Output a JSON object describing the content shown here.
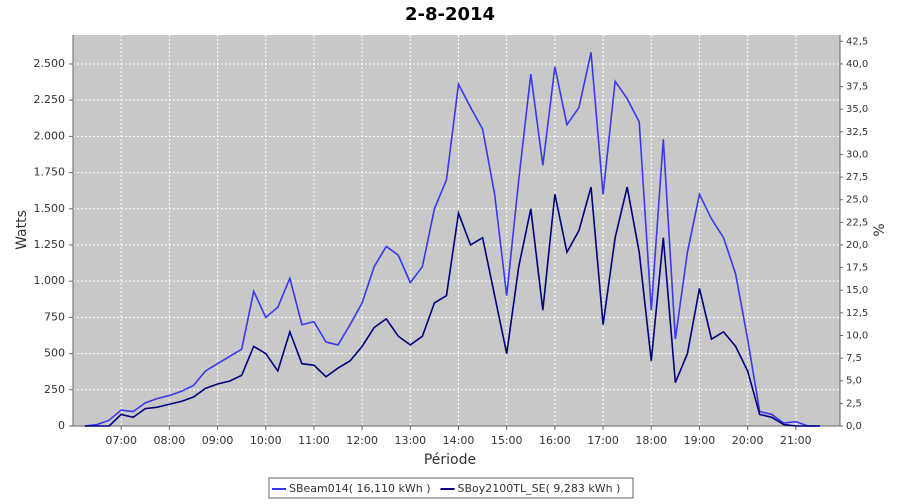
{
  "chart_data": {
    "type": "line",
    "title": "2-8-2014",
    "x_label": "Période",
    "y_label": "Watts",
    "y2_label": "%",
    "grid": true,
    "x": [
      "06:15",
      "06:30",
      "06:45",
      "07:00",
      "07:15",
      "07:30",
      "07:45",
      "08:00",
      "08:15",
      "08:30",
      "08:45",
      "09:00",
      "09:15",
      "09:30",
      "09:45",
      "10:00",
      "10:15",
      "10:30",
      "10:45",
      "11:00",
      "11:15",
      "11:30",
      "11:45",
      "12:00",
      "12:15",
      "12:30",
      "12:45",
      "13:00",
      "13:15",
      "13:30",
      "13:45",
      "14:00",
      "14:15",
      "14:30",
      "14:45",
      "15:00",
      "15:15",
      "15:30",
      "15:45",
      "16:00",
      "16:15",
      "16:30",
      "16:45",
      "17:00",
      "17:15",
      "17:30",
      "17:45",
      "18:00",
      "18:15",
      "18:30",
      "18:45",
      "19:00",
      "19:15",
      "19:30",
      "19:45",
      "20:00",
      "20:15",
      "20:30",
      "20:45",
      "21:00",
      "21:15",
      "21:30"
    ],
    "xlim": [
      "06:00",
      "21:55"
    ],
    "xticks": [
      "07:00",
      "08:00",
      "09:00",
      "10:00",
      "11:00",
      "12:00",
      "13:00",
      "14:00",
      "15:00",
      "16:00",
      "17:00",
      "18:00",
      "19:00",
      "20:00",
      "21:00"
    ],
    "ylim": [
      0,
      2700
    ],
    "yticks": [
      0,
      250,
      500,
      750,
      {
        "value": 1000,
        "label": "1.000"
      },
      {
        "value": 1250,
        "label": "1.250"
      },
      {
        "value": 1500,
        "label": "1.500"
      },
      {
        "value": 1750,
        "label": "1.750"
      },
      {
        "value": 2000,
        "label": "2.000"
      },
      {
        "value": 2250,
        "label": "2.250"
      },
      {
        "value": 2500,
        "label": "2.500"
      }
    ],
    "y2lim": [
      0,
      43.2
    ],
    "y2ticks": [
      {
        "value": 0,
        "label": "0,0"
      },
      {
        "value": 2.5,
        "label": "2,5"
      },
      {
        "value": 5,
        "label": "5,0"
      },
      {
        "value": 7.5,
        "label": "7,5"
      },
      {
        "value": 10,
        "label": "10,0"
      },
      {
        "value": 12.5,
        "label": "12,5"
      },
      {
        "value": 15,
        "label": "15,0"
      },
      {
        "value": 17.5,
        "label": "17,5"
      },
      {
        "value": 20,
        "label": "20,0"
      },
      {
        "value": 22.5,
        "label": "22,5"
      },
      {
        "value": 25,
        "label": "25,0"
      },
      {
        "value": 27.5,
        "label": "27,5"
      },
      {
        "value": 30,
        "label": "30,0"
      },
      {
        "value": 32.5,
        "label": "32,5"
      },
      {
        "value": 35,
        "label": "35,0"
      },
      {
        "value": 37.5,
        "label": "37,5"
      },
      {
        "value": 40,
        "label": "40,0"
      },
      {
        "value": 42.5,
        "label": "42,5"
      }
    ],
    "series": [
      {
        "name": "SBeam014( 16,110 kWh )",
        "color": "#3838f0",
        "values": [
          0,
          10,
          40,
          110,
          100,
          160,
          190,
          210,
          240,
          280,
          380,
          430,
          480,
          530,
          930,
          750,
          820,
          1020,
          700,
          720,
          580,
          560,
          700,
          850,
          1100,
          1240,
          1180,
          990,
          1100,
          1500,
          1700,
          2360,
          2200,
          2050,
          1600,
          900,
          1700,
          2430,
          1800,
          2480,
          2080,
          2200,
          2580,
          1600,
          2380,
          2260,
          2100,
          800,
          1980,
          600,
          1200,
          1600,
          1430,
          1300,
          1050,
          600,
          100,
          80,
          20,
          30,
          0,
          0
        ]
      },
      {
        "name": "SBoy2100TL_SE( 9,283 kWh )",
        "color": "#000080",
        "values": [
          0,
          0,
          0,
          80,
          60,
          120,
          130,
          150,
          170,
          200,
          260,
          290,
          310,
          350,
          550,
          500,
          380,
          650,
          430,
          420,
          340,
          400,
          450,
          550,
          680,
          740,
          620,
          560,
          620,
          850,
          900,
          1470,
          1250,
          1300,
          900,
          500,
          1100,
          1500,
          800,
          1600,
          1200,
          1350,
          1650,
          700,
          1300,
          1650,
          1200,
          450,
          1300,
          300,
          500,
          950,
          600,
          650,
          550,
          380,
          80,
          60,
          10,
          0,
          0,
          0
        ]
      }
    ]
  }
}
